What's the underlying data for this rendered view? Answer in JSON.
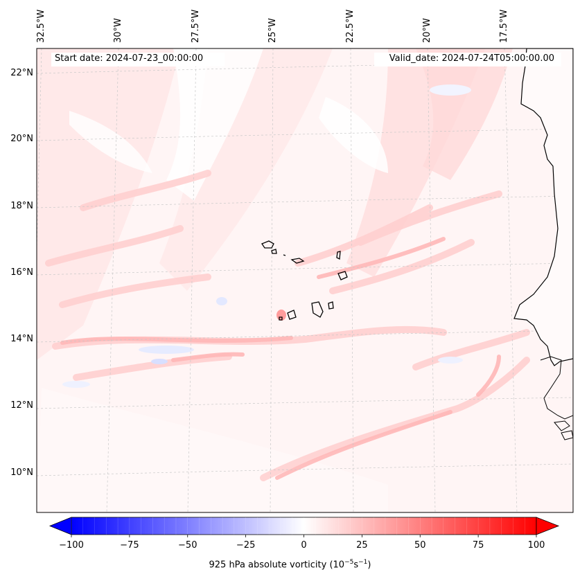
{
  "map": {
    "start_date": "Start date: 2024-07-23_00:00:00",
    "valid_date": "Valid_date: 2024-07-24T05:00:00.00",
    "lon_labels": [
      "32.5°W",
      "30°W",
      "27.5°W",
      "25°W",
      "22.5°W",
      "20°W",
      "17.5°W"
    ],
    "lat_labels": [
      "22°N",
      "20°N",
      "18°N",
      "16°N",
      "14°N",
      "12°N",
      "10°N"
    ]
  },
  "colorbar": {
    "label_prefix": "925 hPa absolute vorticity (10",
    "label_exp1": "−5",
    "label_mid": "s",
    "label_exp2": "−1",
    "label_suffix": ")",
    "ticks": [
      "−100",
      "−75",
      "−50",
      "−25",
      "0",
      "25",
      "50",
      "75",
      "100"
    ],
    "min": -100,
    "max": 100,
    "tick_values": [
      -100,
      -75,
      -50,
      -25,
      0,
      25,
      50,
      75,
      100
    ],
    "color_low": "#0000ff",
    "color_mid": "#ffffff",
    "color_high": "#ff0000"
  }
}
